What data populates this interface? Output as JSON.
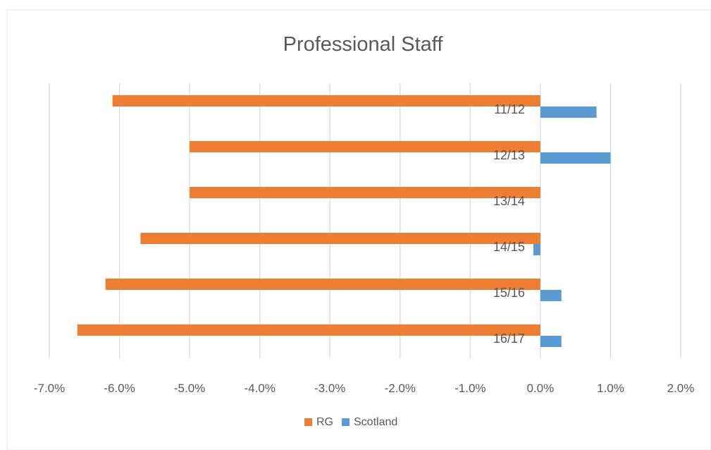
{
  "chart_data": {
    "type": "bar",
    "orientation": "horizontal",
    "title": "Professional Staff",
    "categories": [
      "11/12",
      "12/13",
      "13/14",
      "14/15",
      "15/16",
      "16/17"
    ],
    "series": [
      {
        "name": "RG",
        "color": "#ed7d31",
        "values": [
          -6.1,
          -5.0,
          -5.0,
          -5.7,
          -6.2,
          -6.6
        ]
      },
      {
        "name": "Scotland",
        "color": "#5b9bd5",
        "values": [
          0.8,
          1.0,
          0.0,
          -0.1,
          0.3,
          0.3
        ]
      }
    ],
    "xlim": [
      -7.0,
      2.0
    ],
    "xticks": [
      -7,
      -6,
      -5,
      -4,
      -3,
      -2,
      -1,
      0,
      1,
      2
    ],
    "xtick_labels": [
      "-7.0%",
      "-6.0%",
      "-5.0%",
      "-4.0%",
      "-3.0%",
      "-2.0%",
      "-1.0%",
      "0.0%",
      "1.0%",
      "2.0%"
    ],
    "grid": "vertical",
    "legend": "bottom",
    "xlabel": "",
    "ylabel": ""
  }
}
